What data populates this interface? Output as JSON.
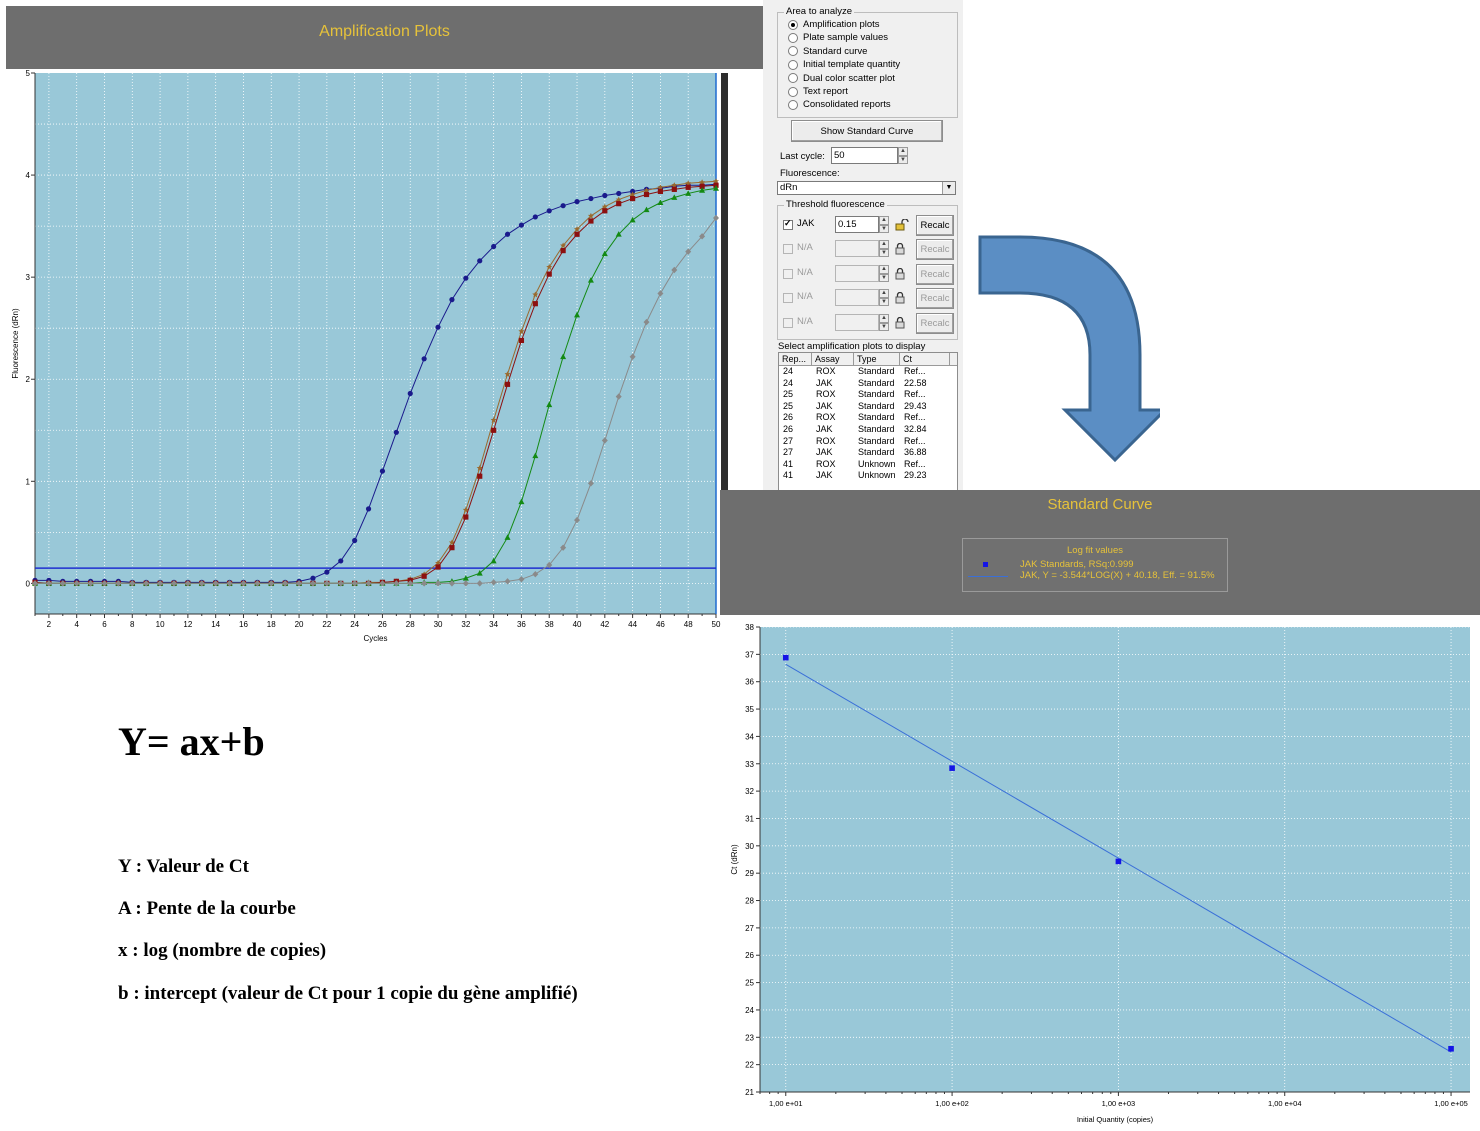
{
  "amplification": {
    "title": "Amplification Plots",
    "chart_data": {
      "type": "line",
      "title": "Amplification Plots",
      "xlabel": "Cycles",
      "ylabel": "Fluorescence (dRn)",
      "xlim": [
        1,
        50
      ],
      "ylim": [
        -0.3,
        5
      ],
      "xticks": [
        2,
        4,
        6,
        8,
        10,
        12,
        14,
        16,
        18,
        20,
        22,
        24,
        26,
        28,
        30,
        32,
        34,
        36,
        38,
        40,
        42,
        44,
        46,
        48,
        50
      ],
      "yticks": [
        0,
        1,
        2,
        3,
        4,
        5
      ],
      "threshold": 0.15,
      "grid": true,
      "series": [
        {
          "color": "#1a1a8c",
          "marker": "circle",
          "ct": 22.58,
          "plateau": 3.95,
          "values": [
            0.03,
            0.03,
            0.02,
            0.02,
            0.02,
            0.02,
            0.02,
            0.01,
            0.01,
            0.01,
            0.01,
            0.01,
            0.01,
            0.01,
            0.01,
            0.01,
            0.01,
            0.01,
            0.01,
            0.02,
            0.05,
            0.11,
            0.22,
            0.42,
            0.73,
            1.1,
            1.48,
            1.86,
            2.2,
            2.51,
            2.78,
            2.99,
            3.16,
            3.3,
            3.42,
            3.51,
            3.59,
            3.65,
            3.7,
            3.74,
            3.77,
            3.8,
            3.82,
            3.84,
            3.86,
            3.87,
            3.89,
            3.9,
            3.9,
            3.91
          ]
        },
        {
          "color": "#9a6a2e",
          "marker": "star",
          "ct": 29.43,
          "plateau": 3.97,
          "values": [
            0,
            0,
            0,
            0,
            0,
            0,
            0,
            0,
            0,
            0,
            0,
            0,
            0,
            0,
            0,
            0,
            0,
            0,
            0,
            0,
            0,
            0,
            0,
            0,
            0.01,
            0.01,
            0.02,
            0.04,
            0.09,
            0.2,
            0.4,
            0.72,
            1.13,
            1.6,
            2.05,
            2.47,
            2.83,
            3.1,
            3.31,
            3.47,
            3.6,
            3.69,
            3.76,
            3.81,
            3.85,
            3.88,
            3.9,
            3.92,
            3.93,
            3.94
          ]
        },
        {
          "color": "#8c1010",
          "marker": "square",
          "ct": 29.6,
          "plateau": 3.92,
          "values": [
            0.01,
            0,
            0,
            0,
            0,
            0,
            0,
            0,
            0,
            0,
            0,
            0,
            0,
            0,
            0,
            0,
            0,
            0,
            0,
            0,
            0,
            0,
            0,
            0,
            0,
            0.01,
            0.02,
            0.03,
            0.07,
            0.16,
            0.35,
            0.65,
            1.05,
            1.5,
            1.95,
            2.38,
            2.74,
            3.03,
            3.26,
            3.42,
            3.55,
            3.65,
            3.72,
            3.77,
            3.81,
            3.84,
            3.86,
            3.88,
            3.89,
            3.9
          ]
        },
        {
          "color": "#138a13",
          "marker": "triangle",
          "ct": 32.84,
          "plateau": 3.9,
          "values": [
            0,
            0,
            0,
            0,
            0,
            0,
            0,
            0,
            0,
            0,
            0,
            0,
            0,
            0,
            0,
            0,
            0,
            0,
            0,
            0,
            0,
            0,
            0,
            0,
            0,
            0,
            0,
            0,
            0.01,
            0.01,
            0.02,
            0.05,
            0.1,
            0.22,
            0.45,
            0.8,
            1.25,
            1.75,
            2.22,
            2.63,
            2.97,
            3.23,
            3.42,
            3.56,
            3.66,
            3.73,
            3.78,
            3.82,
            3.85,
            3.87
          ]
        },
        {
          "color": "#8a8a8a",
          "marker": "diamond",
          "ct": 36.88,
          "plateau": 3.7,
          "values": [
            0,
            0,
            0,
            0,
            0,
            0,
            0,
            0,
            0,
            0,
            0,
            0,
            0,
            0,
            0,
            0,
            0,
            0,
            0,
            0,
            0,
            0,
            0,
            0,
            0,
            0,
            0,
            0,
            0,
            0,
            0,
            0,
            0,
            0.01,
            0.02,
            0.04,
            0.09,
            0.18,
            0.35,
            0.62,
            0.98,
            1.4,
            1.83,
            2.22,
            2.56,
            2.84,
            3.07,
            3.25,
            3.4,
            3.58
          ]
        }
      ]
    }
  },
  "panel": {
    "area_group_title": "Area to analyze",
    "area_options": [
      {
        "label": "Amplification plots",
        "selected": true
      },
      {
        "label": "Plate sample values",
        "selected": false
      },
      {
        "label": "Standard curve",
        "selected": false
      },
      {
        "label": "Initial template quantity",
        "selected": false
      },
      {
        "label": "Dual color scatter plot",
        "selected": false
      },
      {
        "label": "Text report",
        "selected": false
      },
      {
        "label": "Consolidated reports",
        "selected": false
      }
    ],
    "show_standard_curve": "Show Standard Curve",
    "last_cycle_label": "Last cycle:",
    "last_cycle_value": "50",
    "fluorescence_label": "Fluorescence:",
    "fluorescence_value": "dRn",
    "threshold_group_title": "Threshold fluorescence",
    "thresholds": [
      {
        "label": "JAK",
        "value": "0.15",
        "checked": true,
        "enabled": true,
        "recalc": "Recalc"
      },
      {
        "label": "N/A",
        "value": "",
        "checked": false,
        "enabled": false,
        "recalc": "Recalc"
      },
      {
        "label": "N/A",
        "value": "",
        "checked": false,
        "enabled": false,
        "recalc": "Recalc"
      },
      {
        "label": "N/A",
        "value": "",
        "checked": false,
        "enabled": false,
        "recalc": "Recalc"
      },
      {
        "label": "N/A",
        "value": "",
        "checked": false,
        "enabled": false,
        "recalc": "Recalc"
      }
    ],
    "select_label": "Select amplification plots to display",
    "table": {
      "headers": [
        "Rep...",
        "Assay",
        "Type",
        "Ct"
      ],
      "rows": [
        [
          "24",
          "ROX",
          "Standard",
          "Ref..."
        ],
        [
          "24",
          "JAK",
          "Standard",
          "22.58"
        ],
        [
          "25",
          "ROX",
          "Standard",
          "Ref..."
        ],
        [
          "25",
          "JAK",
          "Standard",
          "29.43"
        ],
        [
          "26",
          "ROX",
          "Standard",
          "Ref..."
        ],
        [
          "26",
          "JAK",
          "Standard",
          "32.84"
        ],
        [
          "27",
          "ROX",
          "Standard",
          "Ref..."
        ],
        [
          "27",
          "JAK",
          "Standard",
          "36.88"
        ],
        [
          "41",
          "ROX",
          "Unknown",
          "Ref..."
        ],
        [
          "41",
          "JAK",
          "Unknown",
          "29.23"
        ]
      ]
    }
  },
  "standard": {
    "title": "Standard Curve",
    "legend_title": "Log fit values",
    "legend_series": "JAK Standards, RSq:0.999",
    "legend_fit": "JAK, Y = -3.544*LOG(X) + 40.18, Eff. = 91.5%",
    "chart_data": {
      "type": "scatter",
      "title": "Standard Curve",
      "xlabel": "Initial Quantity (copies)",
      "ylabel": "Ct (dRn)",
      "xscale": "log",
      "xlim": [
        7,
        130000
      ],
      "ylim": [
        21,
        38
      ],
      "xticks": [
        10,
        100,
        1000,
        10000,
        100000
      ],
      "xticklabels": [
        "1,00 e+01",
        "1,00 e+02",
        "1,00 e+03",
        "1,00 e+04",
        "1,00 e+05"
      ],
      "yticks": [
        21,
        22,
        23,
        24,
        25,
        26,
        27,
        28,
        29,
        30,
        31,
        32,
        33,
        34,
        35,
        36,
        37,
        38
      ],
      "grid": true,
      "points": [
        {
          "x": 10,
          "y": 36.88
        },
        {
          "x": 100,
          "y": 32.84
        },
        {
          "x": 1000,
          "y": 29.43
        },
        {
          "x": 100000,
          "y": 22.58
        }
      ],
      "fit": {
        "slope": -3.544,
        "intercept": 40.18
      },
      "point_color": "#1414e6",
      "line_color": "#3a6fd8"
    }
  },
  "formula": {
    "equation": "Y= ax+b",
    "definitions": [
      "Y : Valeur de Ct",
      "A : Pente de la courbe",
      "x : log (nombre de copies)",
      "b : intercept (valeur de Ct pour 1 copie du gène amplifié)"
    ]
  },
  "colors": {
    "plot_bg": "#99c8d8",
    "header_bg": "#6e6e6e",
    "title_gold": "#e6c23a",
    "arrow_fill": "#5b8ec4",
    "arrow_stroke": "#3a6590"
  }
}
